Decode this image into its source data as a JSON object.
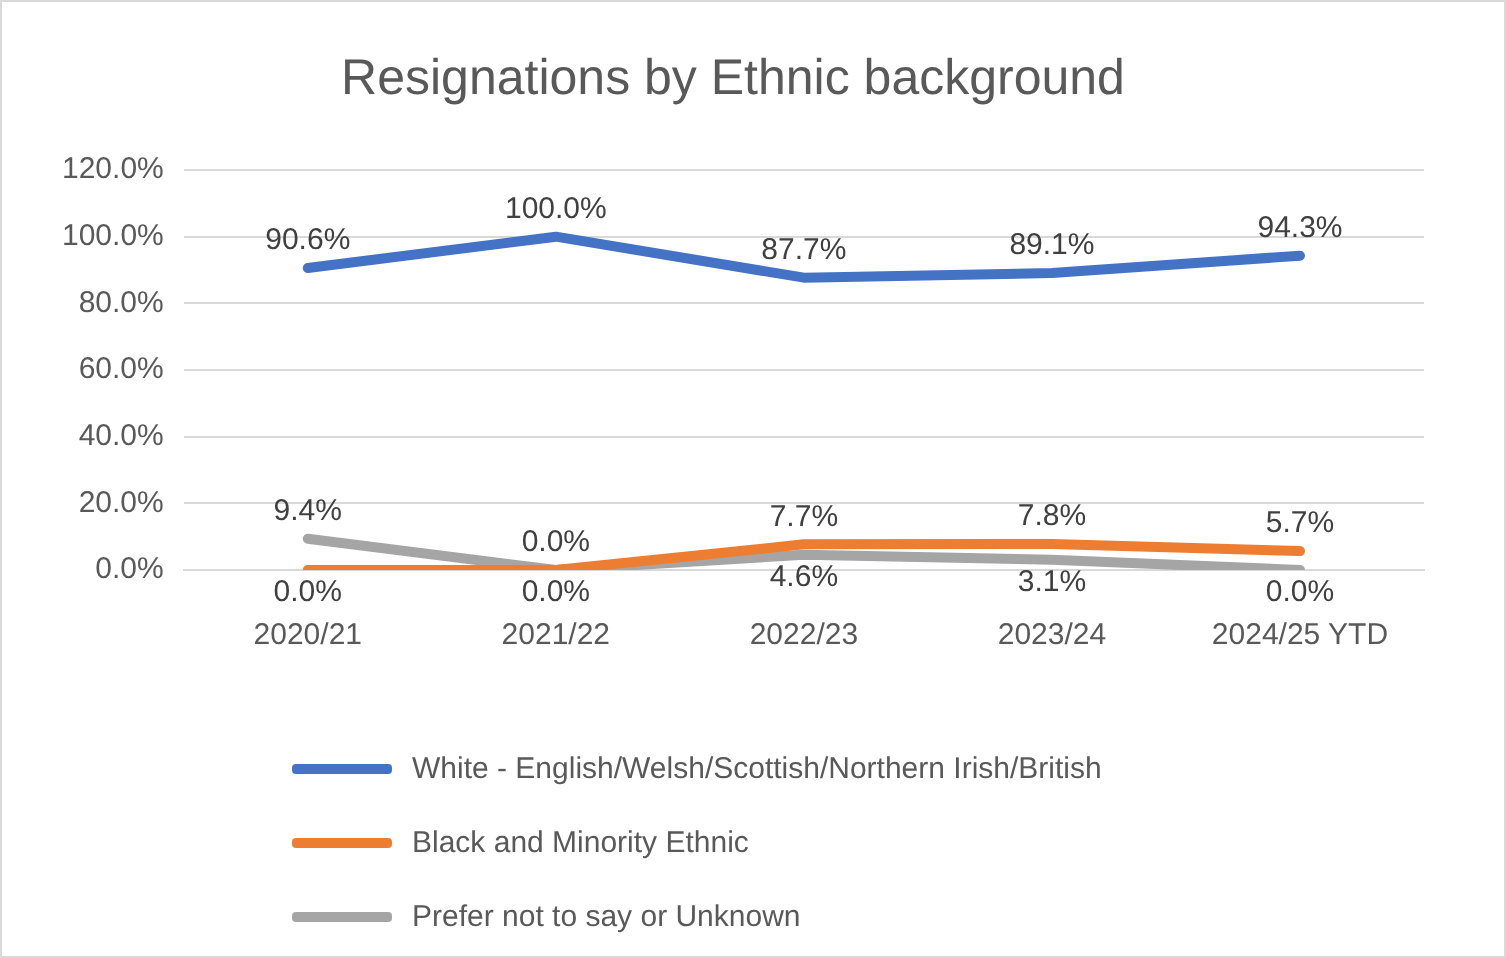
{
  "chart_data": {
    "type": "line",
    "title": "Resignations by Ethnic background",
    "categories": [
      "2020/21",
      "2021/22",
      "2022/23",
      "2023/24",
      "2024/25 YTD"
    ],
    "series": [
      {
        "name": "White - English/Welsh/Scottish/Northern Irish/British",
        "color": "#4472c4",
        "values": [
          90.6,
          100.0,
          87.7,
          89.1,
          94.3
        ],
        "value_labels": [
          "90.6%",
          "100.0%",
          "87.7%",
          "89.1%",
          "94.3%"
        ]
      },
      {
        "name": "Black and Minority Ethnic",
        "color": "#ed7d31",
        "values": [
          0.0,
          0.0,
          7.7,
          7.8,
          5.7
        ],
        "value_labels": [
          "0.0%",
          "0.0%",
          "7.7%",
          "7.8%",
          "5.7%"
        ]
      },
      {
        "name": "Prefer not to say or Unknown",
        "color": "#a5a5a5",
        "values": [
          9.4,
          0.0,
          4.6,
          3.1,
          0.0
        ],
        "value_labels": [
          "9.4%",
          "0.0%",
          "4.6%",
          "3.1%",
          "0.0%"
        ]
      }
    ],
    "ylim": [
      0,
      120
    ],
    "yticks": [
      {
        "value": 0,
        "label": "0.0%"
      },
      {
        "value": 20,
        "label": "20.0%"
      },
      {
        "value": 40,
        "label": "40.0%"
      },
      {
        "value": 60,
        "label": "60.0%"
      },
      {
        "value": 80,
        "label": "80.0%"
      },
      {
        "value": 100,
        "label": "100.0%"
      },
      {
        "value": 120,
        "label": "120.0%"
      }
    ],
    "grid": "y",
    "legend": "bottom",
    "marker": "none",
    "line_style": "solid"
  }
}
